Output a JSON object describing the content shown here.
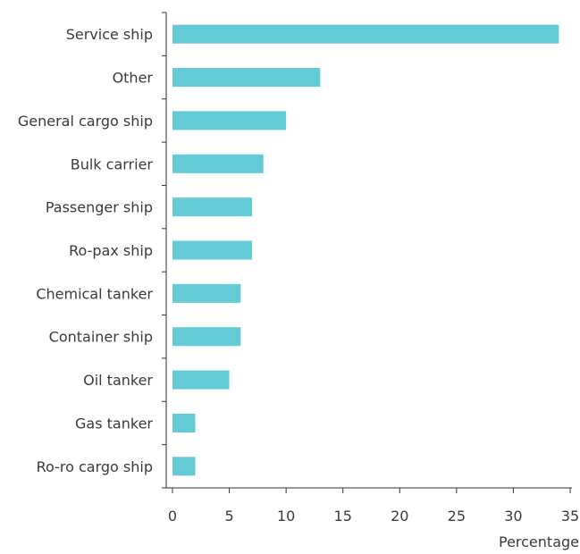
{
  "chart_data": {
    "type": "bar",
    "orientation": "horizontal",
    "categories": [
      "Service ship",
      "Other",
      "General cargo ship",
      "Bulk carrier",
      "Passenger ship",
      "Ro-pax ship",
      "Chemical tanker",
      "Container ship",
      "Oil tanker",
      "Gas tanker",
      "Ro-ro cargo ship"
    ],
    "values": [
      34,
      13,
      10,
      8,
      7,
      7,
      6,
      6,
      5,
      2,
      2
    ],
    "xlabel": "Percentage",
    "ylabel": "",
    "xlim": [
      0,
      35
    ],
    "xticks": [
      "0",
      "5",
      "10",
      "15",
      "20",
      "25",
      "30",
      "35"
    ],
    "grid": false,
    "bar_color": "#62cbd6",
    "axis_color": "#333333"
  }
}
